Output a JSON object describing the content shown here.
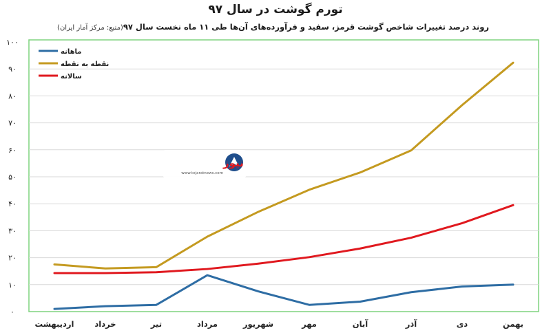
{
  "title": "تورم گوشت در سال ۹۷",
  "subtitle": "روند درصد تغییرات شاخص گوشت قرمز، سفید و فرآورده‌های آن‌ها طی ۱۱ ماه نخست سال ۹۷",
  "source": "(منبع: مرکز آمار ایران)",
  "logo": {
    "name": "تجارت نیوز",
    "url": "www.tejaratnews.com"
  },
  "colors": {
    "monthly": "#2e6da4",
    "point_to_point": "#c49a20",
    "annual": "#e0191f",
    "border": "#7fd37f"
  },
  "chart_data": {
    "type": "line",
    "categories": [
      "اردیبهشت",
      "خرداد",
      "تیر",
      "مرداد",
      "شهریور",
      "مهر",
      "آبان",
      "آذر",
      "دی",
      "بهمن"
    ],
    "yticks": [
      "۰",
      "۱۰",
      "۲۰",
      "۳۰",
      "۴۰",
      "۵۰",
      "۶۰",
      "۷۰",
      "۸۰",
      "۹۰",
      "۱۰۰"
    ],
    "ylim": [
      0,
      100
    ],
    "grid": true,
    "legend_position": "top-left",
    "series": [
      {
        "key": "monthly",
        "name": "ماهانه",
        "values": [
          1,
          2,
          2.5,
          13.5,
          7.5,
          2.5,
          3.7,
          7.2,
          9.3,
          10
        ]
      },
      {
        "key": "point_to_point",
        "name": "نقطه به نقطه",
        "values": [
          17.5,
          16,
          16.5,
          27.8,
          37,
          45.2,
          51.6,
          59.8,
          76.6,
          92.3
        ]
      },
      {
        "key": "annual",
        "name": "سالانه",
        "values": [
          14.3,
          14.3,
          14.6,
          15.8,
          17.8,
          20.2,
          23.4,
          27.4,
          32.8,
          39.5
        ]
      }
    ]
  }
}
